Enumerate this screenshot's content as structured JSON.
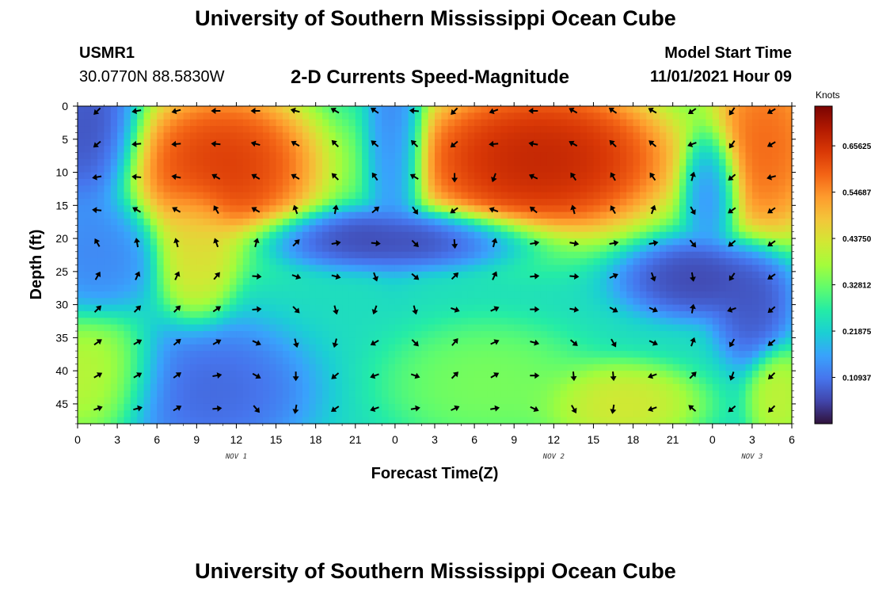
{
  "header": {
    "title": "University of Southern Mississippi Ocean Cube",
    "station_id": "USMR1",
    "coords": "30.0770N  88.5830W",
    "subtitle": "2-D Currents Speed-Magnitude",
    "model_start_label": "Model Start Time",
    "model_start_value": "11/01/2021 Hour 09"
  },
  "footer": {
    "title": "University of Southern Mississippi Ocean Cube"
  },
  "chart_data": {
    "type": "heatmap",
    "xlabel": "Forecast Time(Z)",
    "ylabel": "Depth (ft)",
    "x_tick_labels": [
      "0",
      "3",
      "6",
      "9",
      "12",
      "15",
      "18",
      "21",
      "0",
      "3",
      "6",
      "9",
      "12",
      "15",
      "18",
      "21",
      "0",
      "3",
      "6"
    ],
    "day_labels": [
      {
        "label": "NOV 1",
        "at_tick": 4
      },
      {
        "label": "NOV 2",
        "at_tick": 12
      },
      {
        "label": "NOV 3",
        "at_tick": 17
      }
    ],
    "y_ticks": [
      0,
      5,
      10,
      15,
      20,
      25,
      30,
      35,
      40,
      45
    ],
    "ylim": [
      0,
      48
    ],
    "y_inverted": true,
    "colorbar": {
      "title": "Knots",
      "labels": [
        "0.65625",
        "0.54687",
        "0.43750",
        "0.32812",
        "0.21875",
        "0.10937"
      ],
      "range": [
        0,
        0.75
      ],
      "colors": [
        "#30123b",
        "#4145ab",
        "#4675ed",
        "#39a2fc",
        "#1bcfd4",
        "#24eca6",
        "#61fc6c",
        "#a4fc3b",
        "#d1e834",
        "#f3c63a",
        "#fe9b2d",
        "#f36315",
        "#d93806",
        "#b11901",
        "#7a0402"
      ]
    },
    "speed_centers": [
      {
        "t": 1,
        "d": 4,
        "v": 0.05,
        "st": 2.5,
        "sd": 8
      },
      {
        "t": 1.5,
        "d": 22,
        "v": 0.12,
        "st": 3,
        "sd": 6
      },
      {
        "t": 11,
        "d": 9,
        "v": 0.68,
        "st": 5,
        "sd": 8
      },
      {
        "t": 9,
        "d": 22,
        "v": 0.46,
        "st": 2,
        "sd": 7
      },
      {
        "t": 1,
        "d": 41,
        "v": 0.42,
        "st": 3.5,
        "sd": 6
      },
      {
        "t": 10,
        "d": 43,
        "v": 0.08,
        "st": 5,
        "sd": 7
      },
      {
        "t": 24,
        "d": 6,
        "v": 0.1,
        "st": 1.5,
        "sd": 10
      },
      {
        "t": 24,
        "d": 20,
        "v": 0.04,
        "st": 7,
        "sd": 3
      },
      {
        "t": 35,
        "d": 8,
        "v": 0.72,
        "st": 7,
        "sd": 8
      },
      {
        "t": 31,
        "d": 42,
        "v": 0.35,
        "st": 5,
        "sd": 6
      },
      {
        "t": 41,
        "d": 45,
        "v": 0.45,
        "st": 4,
        "sd": 4
      },
      {
        "t": 47,
        "d": 26,
        "v": 0.04,
        "st": 4,
        "sd": 4
      },
      {
        "t": 51,
        "d": 30,
        "v": 0.06,
        "st": 2,
        "sd": 6
      },
      {
        "t": 52,
        "d": 6,
        "v": 0.62,
        "st": 3,
        "sd": 10
      },
      {
        "t": 48,
        "d": 12,
        "v": 0.1,
        "st": 1.5,
        "sd": 6
      },
      {
        "t": 53,
        "d": 44,
        "v": 0.42,
        "st": 1.5,
        "sd": 5
      }
    ],
    "arrow_times": [
      1.5,
      4.5,
      7.5,
      10.5,
      13.5,
      16.5,
      19.5,
      22.5,
      25.5,
      28.5,
      31.5,
      34.5,
      37.5,
      40.5,
      43.5,
      46.5,
      49.5,
      52.5
    ],
    "arrow_depths": [
      0,
      5,
      10,
      15,
      20,
      25,
      30,
      35,
      40,
      45
    ],
    "arrow_directions_deg": [
      [
        225,
        260,
        255,
        270,
        270,
        285,
        300,
        305,
        275,
        225,
        250,
        270,
        300,
        305,
        300,
        235,
        215,
        240
      ],
      [
        230,
        265,
        265,
        275,
        285,
        300,
        315,
        310,
        315,
        230,
        265,
        280,
        300,
        315,
        310,
        250,
        215,
        240
      ],
      [
        260,
        275,
        280,
        300,
        300,
        300,
        315,
        325,
        300,
        180,
        200,
        295,
        325,
        330,
        325,
        15,
        230,
        255
      ],
      [
        275,
        300,
        300,
        330,
        300,
        340,
        10,
        50,
        145,
        235,
        290,
        310,
        345,
        330,
        20,
        150,
        235,
        235
      ],
      [
        330,
        350,
        345,
        340,
        15,
        45,
        80,
        95,
        135,
        175,
        15,
        80,
        100,
        80,
        80,
        140,
        230,
        235
      ],
      [
        30,
        25,
        25,
        40,
        95,
        110,
        105,
        160,
        130,
        45,
        25,
        85,
        95,
        65,
        160,
        170,
        215,
        235
      ],
      [
        45,
        45,
        45,
        55,
        85,
        135,
        165,
        200,
        165,
        110,
        65,
        90,
        100,
        120,
        115,
        10,
        250,
        230
      ],
      [
        55,
        60,
        50,
        60,
        115,
        165,
        195,
        240,
        135,
        40,
        65,
        105,
        130,
        150,
        115,
        20,
        210,
        230
      ],
      [
        60,
        60,
        55,
        80,
        120,
        180,
        230,
        250,
        110,
        45,
        60,
        90,
        175,
        175,
        250,
        45,
        200,
        225
      ],
      [
        70,
        75,
        60,
        85,
        140,
        190,
        235,
        250,
        80,
        65,
        80,
        115,
        150,
        190,
        250,
        310,
        230,
        225
      ]
    ]
  }
}
